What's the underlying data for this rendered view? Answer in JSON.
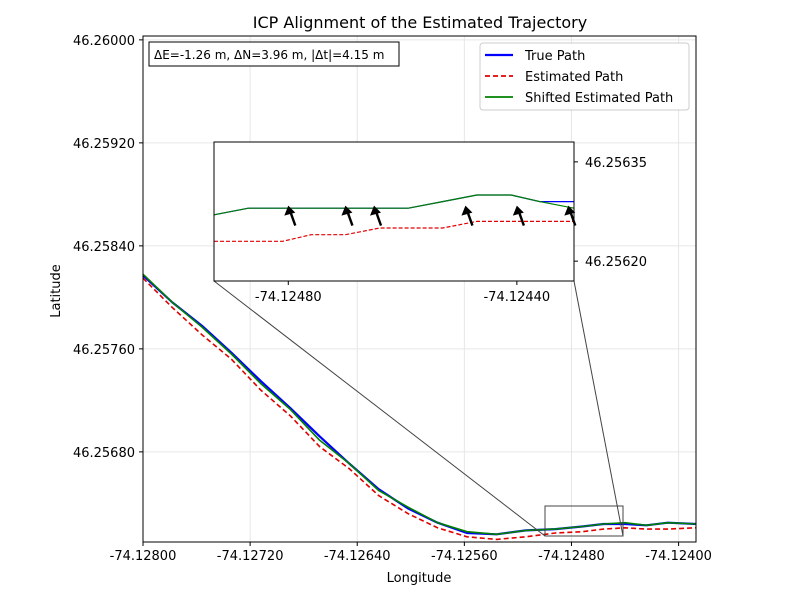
{
  "chart_data": {
    "type": "line",
    "title": "ICP Alignment of the Estimated Trajectory",
    "xlabel": "Longitude",
    "ylabel": "Latitude",
    "xlim": [
      -74.128,
      -74.12387
    ],
    "ylim": [
      46.2561,
      46.26003
    ],
    "xticks": [
      -74.128,
      -74.1272,
      -74.1264,
      -74.1256,
      -74.1248,
      -74.124
    ],
    "xtick_labels": [
      "-74.12800",
      "-74.12720",
      "-74.12640",
      "-74.12560",
      "-74.12480",
      "-74.12400"
    ],
    "yticks": [
      46.2568,
      46.2576,
      46.2584,
      46.2592,
      46.26
    ],
    "ytick_labels": [
      "46.25680",
      "46.25760",
      "46.25840",
      "46.25920",
      "46.26000"
    ],
    "grid": true,
    "legend_position": "top-right",
    "annotation": "ΔE=-1.26 m, ΔN=3.96 m, |Δt|=4.15 m",
    "series": [
      {
        "name": "True Path",
        "color": "#0000ff",
        "style": "solid",
        "x": [
          -74.128,
          -74.12778,
          -74.12756,
          -74.12734,
          -74.12712,
          -74.1269,
          -74.12668,
          -74.12646,
          -74.12624,
          -74.12602,
          -74.1258,
          -74.12558,
          -74.12536,
          -74.12514,
          -74.12492,
          -74.12472,
          -74.12456,
          -74.1244,
          -74.12424,
          -74.12408,
          -74.12387
        ],
        "y": [
          46.25817,
          46.25796,
          46.25778,
          46.25757,
          46.25735,
          46.25714,
          46.25692,
          46.25671,
          46.25651,
          46.25636,
          46.25625,
          46.25617,
          46.25616,
          46.25619,
          46.2562,
          46.25622,
          46.25624,
          46.25624,
          46.25623,
          46.25625,
          46.25624
        ]
      },
      {
        "name": "Estimated Path",
        "color": "#e00000",
        "style": "dashed",
        "x": [
          -74.128,
          -74.12778,
          -74.12756,
          -74.12734,
          -74.12712,
          -74.1269,
          -74.12668,
          -74.12646,
          -74.12624,
          -74.12602,
          -74.1258,
          -74.12558,
          -74.12536,
          -74.12514,
          -74.12492,
          -74.12472,
          -74.12456,
          -74.1244,
          -74.12424,
          -74.12408,
          -74.12387
        ],
        "y": [
          46.25815,
          46.25792,
          46.25771,
          46.25752,
          46.25728,
          46.25708,
          46.25684,
          46.25667,
          46.25646,
          46.25632,
          46.25621,
          46.25614,
          46.25612,
          46.25614,
          46.25617,
          46.25618,
          46.2562,
          46.25621,
          46.2562,
          46.2562,
          46.25621
        ]
      },
      {
        "name": "Shifted Estimated Path",
        "color": "#008000",
        "style": "solid",
        "x": [
          -74.128,
          -74.12778,
          -74.12756,
          -74.12734,
          -74.12712,
          -74.1269,
          -74.12668,
          -74.12646,
          -74.12624,
          -74.12602,
          -74.1258,
          -74.12558,
          -74.12536,
          -74.12514,
          -74.12492,
          -74.12472,
          -74.12456,
          -74.1244,
          -74.12424,
          -74.12408,
          -74.12387
        ],
        "y": [
          46.25818,
          46.25796,
          46.25777,
          46.25756,
          46.25733,
          46.25713,
          46.25689,
          46.25671,
          46.2565,
          46.25637,
          46.25625,
          46.25618,
          46.25616,
          46.25619,
          46.2562,
          46.25622,
          46.25624,
          46.25625,
          46.25623,
          46.25625,
          46.25624
        ]
      }
    ],
    "inset": {
      "xlim": [
        -74.12493,
        -74.1243
      ],
      "ylim": [
        46.25617,
        46.25638
      ],
      "xticks": [
        -74.1248,
        -74.1244
      ],
      "xtick_labels": [
        "-74.12480",
        "-74.12440"
      ],
      "yticks": [
        46.2562,
        46.25635
      ],
      "ytick_labels": [
        "46.25620",
        "46.25635"
      ],
      "true_y": [
        46.25627,
        46.25628,
        46.25628,
        46.25628,
        46.25628,
        46.25628,
        46.25628,
        46.25629,
        46.2563,
        46.2563,
        46.25629,
        46.25629
      ],
      "estimated_y": [
        46.25623,
        46.25623,
        46.25623,
        46.25624,
        46.25624,
        46.25625,
        46.25625,
        46.25625,
        46.25626,
        46.25626,
        46.25626,
        46.25626
      ],
      "shifted_y": [
        46.25627,
        46.25628,
        46.25628,
        46.25628,
        46.25628,
        46.25628,
        46.25628,
        46.25629,
        46.2563,
        46.2563,
        46.25629,
        46.25628
      ],
      "inset_x": [
        -74.12493,
        -74.12487,
        -74.12481,
        -74.12476,
        -74.1247,
        -74.12464,
        -74.12459,
        -74.12453,
        -74.12447,
        -74.12441,
        -74.12436,
        -74.1243
      ],
      "arrow_x": [
        -74.1248,
        -74.1247,
        -74.12465,
        -74.12449,
        -74.1244,
        -74.12431
      ]
    }
  }
}
